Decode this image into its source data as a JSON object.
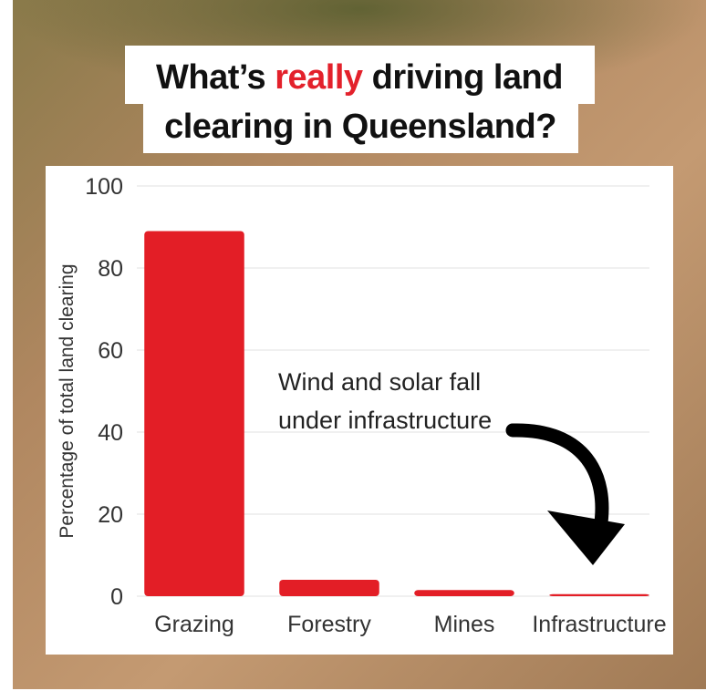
{
  "title": {
    "line1": [
      "What’s",
      "really",
      "driving land"
    ],
    "line2": "clearing in Queensland?",
    "highlight_color": "#e3212b"
  },
  "chart_data": {
    "type": "bar",
    "categories": [
      "Grazing",
      "Forestry",
      "Mines",
      "Infrastructure"
    ],
    "values": [
      89,
      4,
      1.5,
      0.5
    ],
    "color": "#e31e26",
    "ylabel": "Percentage of total land clearing",
    "ylim": [
      0,
      100
    ],
    "yticks": [
      0,
      20,
      40,
      60,
      80,
      100
    ],
    "grid": true,
    "annotation": [
      "Wind and solar fall",
      "under infrastructure"
    ]
  }
}
